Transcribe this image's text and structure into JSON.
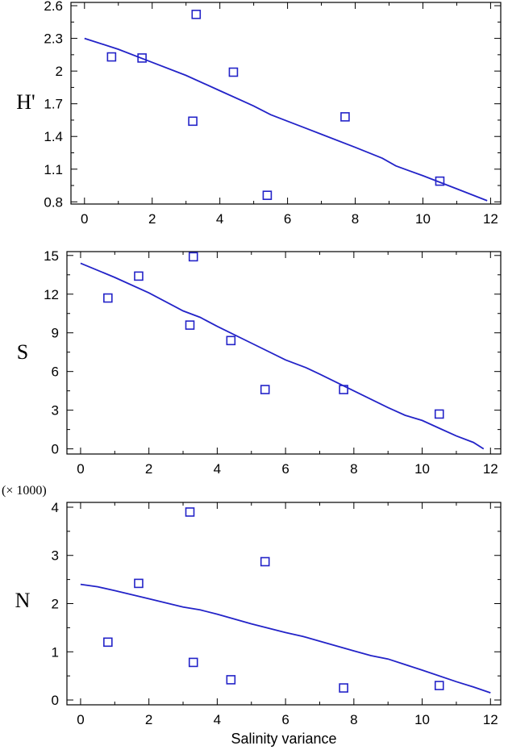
{
  "chart_data": [
    {
      "type": "scatter",
      "ylabel": "H'",
      "xlabel": "",
      "xlim": [
        -0.4,
        12.3
      ],
      "ylim": [
        0.78,
        2.63
      ],
      "xticks": [
        "0",
        "2",
        "4",
        "6",
        "8",
        "10",
        "12"
      ],
      "yticks": [
        "0.8",
        "1.1",
        "1.4",
        "1.7",
        "2",
        "2.3",
        "2.6"
      ],
      "grid": false,
      "marker_color": "#2323c8",
      "line_color": "#2323c8",
      "points": [
        {
          "x": 0.8,
          "y": 2.13
        },
        {
          "x": 1.7,
          "y": 2.12
        },
        {
          "x": 3.2,
          "y": 1.54
        },
        {
          "x": 3.3,
          "y": 2.52
        },
        {
          "x": 4.4,
          "y": 1.99
        },
        {
          "x": 5.4,
          "y": 0.86
        },
        {
          "x": 7.7,
          "y": 1.58
        },
        {
          "x": 10.5,
          "y": 0.99
        }
      ],
      "fit_line": [
        {
          "x": 0,
          "y": 2.3
        },
        {
          "x": 1,
          "y": 2.2
        },
        {
          "x": 2,
          "y": 2.08
        },
        {
          "x": 3,
          "y": 1.96
        },
        {
          "x": 4,
          "y": 1.82
        },
        {
          "x": 5,
          "y": 1.68
        },
        {
          "x": 5.5,
          "y": 1.6
        },
        {
          "x": 6,
          "y": 1.54
        },
        {
          "x": 7,
          "y": 1.42
        },
        {
          "x": 8,
          "y": 1.3
        },
        {
          "x": 8.8,
          "y": 1.2
        },
        {
          "x": 9.2,
          "y": 1.13
        },
        {
          "x": 10,
          "y": 1.04
        },
        {
          "x": 11,
          "y": 0.92
        },
        {
          "x": 11.9,
          "y": 0.81
        }
      ]
    },
    {
      "type": "scatter",
      "ylabel": "S",
      "xlabel": "",
      "xlim": [
        -0.4,
        12.3
      ],
      "ylim": [
        -0.4,
        15.3
      ],
      "xticks": [
        "0",
        "2",
        "4",
        "6",
        "8",
        "10",
        "12"
      ],
      "yticks": [
        "0",
        "3",
        "6",
        "9",
        "12",
        "15"
      ],
      "grid": false,
      "marker_color": "#2323c8",
      "line_color": "#2323c8",
      "points": [
        {
          "x": 0.8,
          "y": 11.7
        },
        {
          "x": 1.7,
          "y": 13.4
        },
        {
          "x": 3.2,
          "y": 9.6
        },
        {
          "x": 3.3,
          "y": 14.9
        },
        {
          "x": 4.4,
          "y": 8.4
        },
        {
          "x": 5.4,
          "y": 4.6
        },
        {
          "x": 7.7,
          "y": 4.6
        },
        {
          "x": 10.5,
          "y": 2.7
        }
      ],
      "fit_line": [
        {
          "x": 0,
          "y": 14.4
        },
        {
          "x": 1,
          "y": 13.3
        },
        {
          "x": 2,
          "y": 12.1
        },
        {
          "x": 3,
          "y": 10.7
        },
        {
          "x": 3.5,
          "y": 10.2
        },
        {
          "x": 4,
          "y": 9.5
        },
        {
          "x": 5,
          "y": 8.2
        },
        {
          "x": 6,
          "y": 6.9
        },
        {
          "x": 6.6,
          "y": 6.3
        },
        {
          "x": 7,
          "y": 5.8
        },
        {
          "x": 8,
          "y": 4.5
        },
        {
          "x": 9,
          "y": 3.2
        },
        {
          "x": 9.5,
          "y": 2.6
        },
        {
          "x": 10,
          "y": 2.2
        },
        {
          "x": 10.5,
          "y": 1.6
        },
        {
          "x": 11,
          "y": 1.0
        },
        {
          "x": 11.5,
          "y": 0.5
        },
        {
          "x": 11.8,
          "y": 0.0
        }
      ]
    },
    {
      "type": "scatter",
      "ylabel": "N",
      "xlabel": "Salinity variance",
      "y_multiplier": "(× 1000)",
      "xlim": [
        -0.4,
        12.3
      ],
      "ylim": [
        -0.1,
        4.1
      ],
      "xticks": [
        "0",
        "2",
        "4",
        "6",
        "8",
        "10",
        "12"
      ],
      "yticks": [
        "0",
        "1",
        "2",
        "3",
        "4"
      ],
      "grid": false,
      "marker_color": "#2323c8",
      "line_color": "#2323c8",
      "points": [
        {
          "x": 0.8,
          "y": 1.2
        },
        {
          "x": 1.7,
          "y": 2.42
        },
        {
          "x": 3.2,
          "y": 3.9
        },
        {
          "x": 3.3,
          "y": 0.78
        },
        {
          "x": 4.4,
          "y": 0.42
        },
        {
          "x": 5.4,
          "y": 2.87
        },
        {
          "x": 7.7,
          "y": 0.25
        },
        {
          "x": 10.5,
          "y": 0.3
        }
      ],
      "fit_line": [
        {
          "x": 0,
          "y": 2.4
        },
        {
          "x": 0.5,
          "y": 2.35
        },
        {
          "x": 1,
          "y": 2.27
        },
        {
          "x": 2,
          "y": 2.1
        },
        {
          "x": 3,
          "y": 1.93
        },
        {
          "x": 3.5,
          "y": 1.87
        },
        {
          "x": 4,
          "y": 1.78
        },
        {
          "x": 5,
          "y": 1.58
        },
        {
          "x": 6,
          "y": 1.4
        },
        {
          "x": 6.5,
          "y": 1.32
        },
        {
          "x": 7,
          "y": 1.22
        },
        {
          "x": 8,
          "y": 1.02
        },
        {
          "x": 8.5,
          "y": 0.92
        },
        {
          "x": 9,
          "y": 0.85
        },
        {
          "x": 10,
          "y": 0.62
        },
        {
          "x": 11,
          "y": 0.38
        },
        {
          "x": 11.5,
          "y": 0.27
        },
        {
          "x": 12,
          "y": 0.15
        }
      ]
    }
  ]
}
